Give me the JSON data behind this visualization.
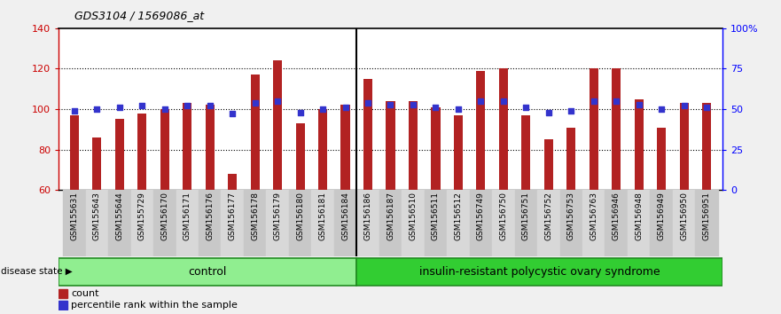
{
  "title": "GDS3104 / 1569086_at",
  "samples": [
    "GSM155631",
    "GSM155643",
    "GSM155644",
    "GSM155729",
    "GSM156170",
    "GSM156171",
    "GSM156176",
    "GSM156177",
    "GSM156178",
    "GSM156179",
    "GSM156180",
    "GSM156181",
    "GSM156184",
    "GSM156186",
    "GSM156187",
    "GSM156510",
    "GSM156511",
    "GSM156512",
    "GSM156749",
    "GSM156750",
    "GSM156751",
    "GSM156752",
    "GSM156753",
    "GSM156763",
    "GSM156946",
    "GSM156948",
    "GSM156949",
    "GSM156950",
    "GSM156951"
  ],
  "counts": [
    97,
    86,
    95,
    98,
    100,
    103,
    102,
    68,
    117,
    124,
    93,
    100,
    102,
    115,
    104,
    104,
    101,
    97,
    119,
    120,
    97,
    85,
    91,
    120,
    120,
    105,
    91,
    103,
    103
  ],
  "percentiles": [
    49,
    50,
    51,
    52,
    50,
    52,
    52,
    47,
    54,
    55,
    48,
    50,
    51,
    54,
    53,
    53,
    51,
    50,
    55,
    55,
    51,
    48,
    49,
    55,
    55,
    53,
    50,
    52,
    51
  ],
  "control_count": 13,
  "disease_count": 16,
  "ylim_left": [
    60,
    140
  ],
  "ylim_right": [
    0,
    100
  ],
  "yticks_left": [
    60,
    80,
    100,
    120,
    140
  ],
  "yticks_right": [
    0,
    25,
    50,
    75,
    100
  ],
  "ytick_labels_right": [
    "0",
    "25",
    "50",
    "75",
    "100%"
  ],
  "bar_color": "#b22222",
  "marker_color": "#3333cc",
  "bg_color": "#f0f0f0",
  "plot_bg": "#ffffff",
  "col_bg_odd": "#c8c8c8",
  "col_bg_even": "#d8d8d8",
  "control_fill": "#90ee90",
  "disease_fill": "#32cd32",
  "control_label": "control",
  "disease_label": "insulin-resistant polycystic ovary syndrome",
  "disease_state_label": "disease state",
  "legend_count": "count",
  "legend_percentile": "percentile rank within the sample"
}
